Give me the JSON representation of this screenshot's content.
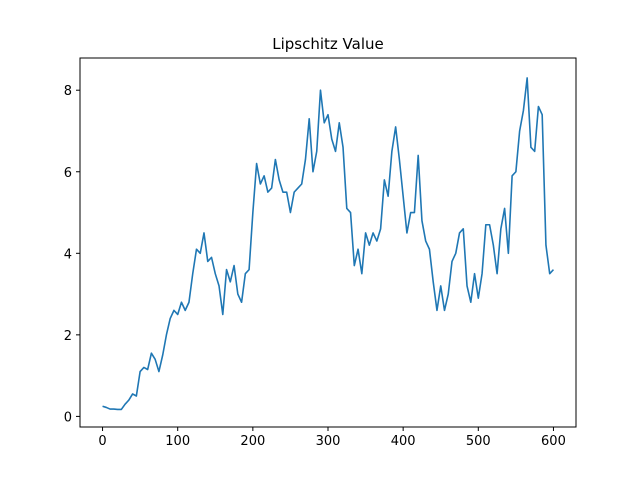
{
  "chart_data": {
    "type": "line",
    "title": "Lipschitz Value",
    "x": [
      0,
      5,
      10,
      15,
      20,
      25,
      30,
      35,
      40,
      45,
      50,
      55,
      60,
      65,
      70,
      75,
      80,
      85,
      90,
      95,
      100,
      105,
      110,
      115,
      120,
      125,
      130,
      135,
      140,
      145,
      150,
      155,
      160,
      165,
      170,
      175,
      180,
      185,
      190,
      195,
      200,
      205,
      210,
      215,
      220,
      225,
      230,
      235,
      240,
      245,
      250,
      255,
      260,
      265,
      270,
      275,
      280,
      285,
      290,
      295,
      300,
      305,
      310,
      315,
      320,
      325,
      330,
      335,
      340,
      345,
      350,
      355,
      360,
      365,
      370,
      375,
      380,
      385,
      390,
      395,
      400,
      405,
      410,
      415,
      420,
      425,
      430,
      435,
      440,
      445,
      450,
      455,
      460,
      465,
      470,
      475,
      480,
      485,
      490,
      495,
      500,
      505,
      510,
      515,
      520,
      525,
      530,
      535,
      540,
      545,
      550,
      555,
      560,
      565,
      570,
      575,
      580,
      585,
      590,
      595,
      600
    ],
    "values": [
      0.25,
      0.22,
      0.18,
      0.18,
      0.17,
      0.17,
      0.3,
      0.4,
      0.55,
      0.5,
      1.1,
      1.2,
      1.15,
      1.55,
      1.4,
      1.1,
      1.5,
      2.0,
      2.4,
      2.6,
      2.5,
      2.8,
      2.6,
      2.8,
      3.5,
      4.1,
      4.0,
      4.5,
      3.8,
      3.9,
      3.5,
      3.2,
      2.5,
      3.6,
      3.3,
      3.7,
      3.0,
      2.8,
      3.5,
      3.6,
      5.0,
      6.2,
      5.7,
      5.9,
      5.5,
      5.6,
      6.3,
      5.8,
      5.5,
      5.5,
      5.0,
      5.5,
      5.6,
      5.7,
      6.3,
      7.3,
      6.0,
      6.5,
      8.0,
      7.2,
      7.4,
      6.8,
      6.5,
      7.2,
      6.6,
      5.1,
      5.0,
      3.7,
      4.1,
      3.5,
      4.5,
      4.2,
      4.5,
      4.3,
      4.6,
      5.8,
      5.4,
      6.5,
      7.1,
      6.3,
      5.4,
      4.5,
      5.0,
      5.0,
      6.4,
      4.8,
      4.3,
      4.1,
      3.3,
      2.6,
      3.2,
      2.6,
      3.0,
      3.8,
      4.0,
      4.5,
      4.6,
      3.2,
      2.8,
      3.5,
      2.9,
      3.5,
      4.7,
      4.7,
      4.2,
      3.5,
      4.6,
      5.1,
      4.0,
      5.9,
      6.0,
      7.0,
      7.5,
      8.3,
      6.6,
      6.5,
      7.6,
      7.4,
      4.2,
      3.5,
      3.6
    ],
    "color": "#1f77b4",
    "xlim": [
      -30,
      630
    ],
    "ylim": [
      -0.26,
      8.79
    ],
    "xticks": [
      0,
      100,
      200,
      300,
      400,
      500,
      600
    ],
    "yticks": [
      0,
      2,
      4,
      6,
      8
    ],
    "grid": false
  }
}
